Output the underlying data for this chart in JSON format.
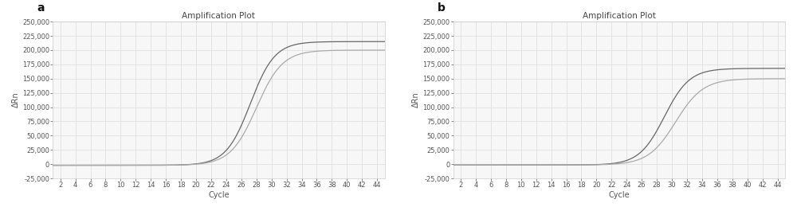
{
  "title": "Amplification Plot",
  "xlabel": "Cycle",
  "ylabel": "ΔRn",
  "panel_a_label": "a",
  "panel_b_label": "b",
  "x_ticks": [
    2,
    4,
    6,
    8,
    10,
    12,
    14,
    16,
    18,
    20,
    22,
    24,
    26,
    28,
    30,
    32,
    34,
    36,
    38,
    40,
    42,
    44
  ],
  "x_min": 1,
  "x_max": 45,
  "y_min": -25000,
  "y_max": 250000,
  "y_ticks": [
    -25000,
    0,
    25000,
    50000,
    75000,
    100000,
    125000,
    150000,
    175000,
    200000,
    225000,
    250000
  ],
  "line_color1": "#666666",
  "line_color2": "#aaaaaa",
  "background_color": "#f7f7f7",
  "grid_color": "#e0e0e0",
  "title_fontsize": 7.5,
  "label_fontsize": 7,
  "tick_fontsize": 6,
  "panel_label_fontsize": 10
}
